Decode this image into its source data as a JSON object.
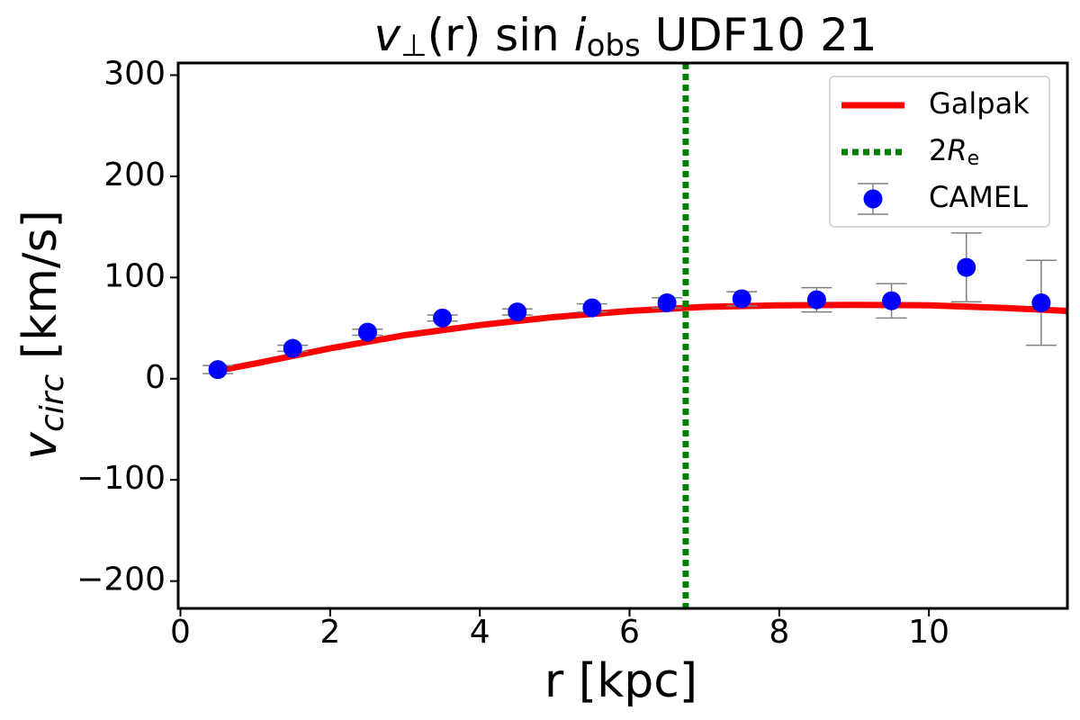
{
  "chart_data": {
    "type": "line",
    "title": [
      "v",
      "⊥",
      "(r) sin ",
      "i",
      "obs",
      " UDF10 21"
    ],
    "x_label": "r [kpc]",
    "y_label": [
      "v",
      "circ",
      " [km/s]"
    ],
    "xlim": [
      -0.03,
      11.85
    ],
    "ylim": [
      -227,
      312
    ],
    "xticks": [
      0,
      2,
      4,
      6,
      8,
      10
    ],
    "yticks": [
      {
        "value": -200,
        "label": "−200"
      },
      {
        "value": -100,
        "label": "−100"
      },
      0,
      100,
      200,
      300
    ],
    "legend": "upper right",
    "series": [
      {
        "name": "Galpak",
        "type": "line",
        "color": "#ff0000",
        "x": [
          0.5,
          1,
          2,
          3,
          4,
          5,
          6,
          7,
          8,
          9,
          10,
          11,
          11.85
        ],
        "values": [
          8,
          15,
          30,
          43,
          53,
          61,
          67,
          71,
          72.5,
          73,
          72.5,
          70,
          67
        ]
      },
      {
        "name": [
          "2",
          "R",
          "e"
        ],
        "type": "vline",
        "color": "#008000",
        "x": 6.75
      },
      {
        "name": "CAMEL",
        "type": "errorbar",
        "color": "#0000ff",
        "error_color": "#808080",
        "x": [
          0.5,
          1.5,
          2.5,
          3.5,
          4.5,
          5.5,
          6.5,
          7.5,
          8.5,
          9.5,
          10.5,
          11.5
        ],
        "values": [
          9,
          30,
          46,
          60,
          66,
          70,
          75,
          79,
          78,
          77,
          110,
          75
        ],
        "errors": [
          4,
          3,
          3,
          3,
          3,
          4,
          5,
          7,
          12,
          17,
          34,
          42
        ]
      }
    ]
  }
}
